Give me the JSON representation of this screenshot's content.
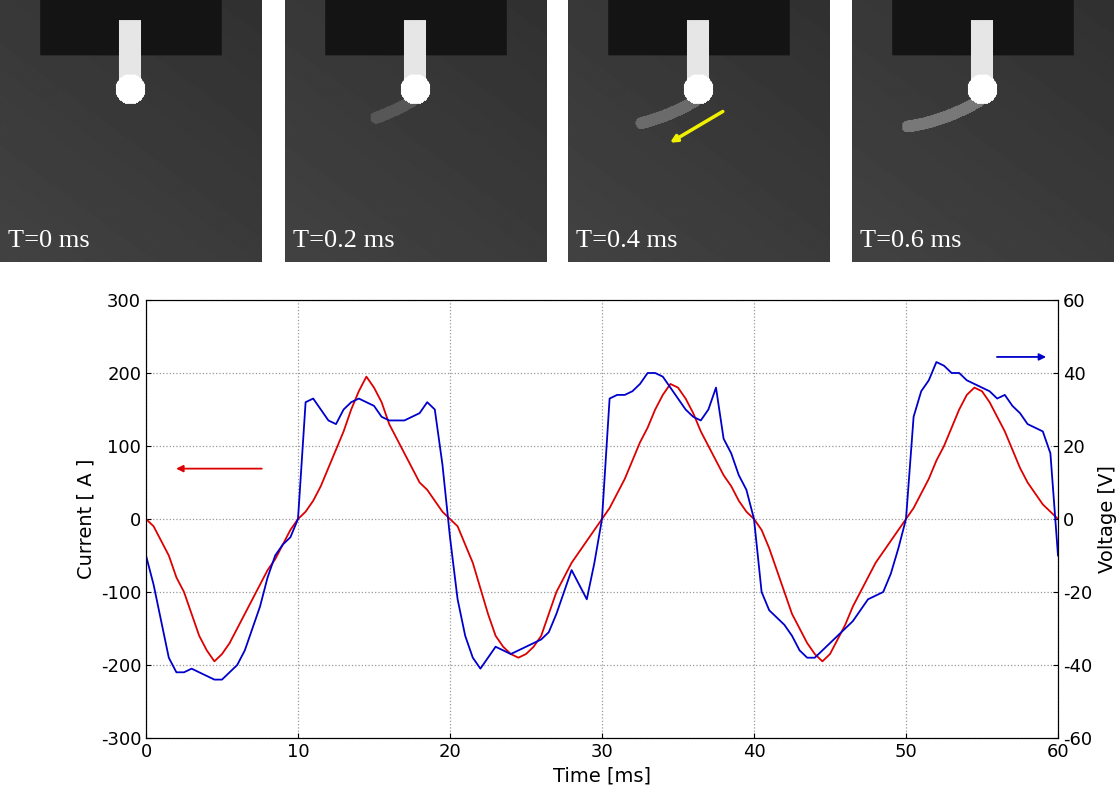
{
  "frames": [
    "T=0 ms",
    "T=0.2 ms",
    "T=0.4 ms",
    "T=0.6 ms"
  ],
  "chart_data": {
    "type": "line",
    "x_label": "Time [ms]",
    "y_label": "Current [ A ]",
    "y2_label": "Voltage [V]",
    "xlim": [
      0,
      60
    ],
    "xticks": [
      0,
      10,
      20,
      30,
      40,
      50,
      60
    ],
    "ylim": [
      -300,
      300
    ],
    "yticks": [
      -300,
      -200,
      -100,
      0,
      100,
      200,
      300
    ],
    "y2lim": [
      -60,
      60
    ],
    "y2ticks": [
      -60,
      -40,
      -20,
      0,
      20,
      40,
      60
    ],
    "grid": true,
    "x": [
      0,
      0.5,
      1,
      1.5,
      2,
      2.5,
      3,
      3.5,
      4,
      4.5,
      5,
      5.5,
      6,
      6.5,
      7,
      7.5,
      8,
      8.5,
      9,
      9.5,
      10,
      10.5,
      11,
      11.5,
      12,
      12.5,
      13,
      13.5,
      14,
      14.5,
      15,
      15.5,
      16,
      16.5,
      17,
      17.5,
      18,
      18.5,
      19,
      19.5,
      20,
      20.5,
      21,
      21.5,
      22,
      22.5,
      23,
      23.5,
      24,
      24.5,
      25,
      25.5,
      26,
      26.5,
      27,
      27.5,
      28,
      28.5,
      29,
      29.5,
      30,
      30.5,
      31,
      31.5,
      32,
      32.5,
      33,
      33.5,
      34,
      34.5,
      35,
      35.5,
      36,
      36.5,
      37,
      37.5,
      38,
      38.5,
      39,
      39.5,
      40,
      40.5,
      41,
      41.5,
      42,
      42.5,
      43,
      43.5,
      44,
      44.5,
      45,
      45.5,
      46,
      46.5,
      47,
      47.5,
      48,
      48.5,
      49,
      49.5,
      50,
      50.5,
      51,
      51.5,
      52,
      52.5,
      53,
      53.5,
      54,
      54.5,
      55,
      55.5,
      56,
      56.5,
      57,
      57.5,
      58,
      58.5,
      59,
      59.5,
      60
    ],
    "series": [
      {
        "color": "#dd0000",
        "axis": "y",
        "values": [
          0,
          -10,
          -30,
          -50,
          -80,
          -100,
          -130,
          -160,
          -180,
          -195,
          -185,
          -170,
          -150,
          -130,
          -110,
          -90,
          -70,
          -55,
          -35,
          -15,
          0,
          10,
          25,
          45,
          70,
          95,
          120,
          150,
          175,
          195,
          180,
          160,
          130,
          110,
          90,
          70,
          50,
          40,
          25,
          10,
          0,
          -10,
          -35,
          -60,
          -95,
          -130,
          -160,
          -175,
          -185,
          -190,
          -185,
          -175,
          -160,
          -130,
          -100,
          -80,
          -60,
          -45,
          -30,
          -15,
          0,
          15,
          35,
          55,
          80,
          105,
          125,
          150,
          170,
          185,
          180,
          165,
          145,
          120,
          100,
          80,
          60,
          45,
          25,
          10,
          0,
          -15,
          -40,
          -70,
          -100,
          -130,
          -150,
          -170,
          -185,
          -195,
          -185,
          -165,
          -145,
          -120,
          -100,
          -80,
          -60,
          -45,
          -30,
          -15,
          0,
          15,
          35,
          55,
          80,
          100,
          125,
          150,
          170,
          180,
          175,
          160,
          140,
          120,
          95,
          70,
          50,
          35,
          20,
          10,
          0
        ]
      },
      {
        "color": "#0000cc",
        "axis": "y2",
        "values": [
          -10,
          -18,
          -28,
          -38,
          -42,
          -42,
          -41,
          -42,
          -43,
          -44,
          -44,
          -42,
          -40,
          -36,
          -30,
          -24,
          -16,
          -10,
          -7,
          -5,
          0,
          32,
          33,
          30,
          27,
          26,
          30,
          32,
          33,
          32,
          31,
          28,
          27,
          27,
          27,
          28,
          29,
          32,
          30,
          15,
          -5,
          -22,
          -32,
          -38,
          -41,
          -38,
          -35,
          -36,
          -37,
          -36,
          -35,
          -34,
          -33,
          -31,
          -26,
          -20,
          -14,
          -18,
          -22,
          -12,
          0,
          33,
          34,
          34,
          35,
          37,
          40,
          40,
          39,
          36,
          33,
          30,
          28,
          27,
          30,
          36,
          22,
          18,
          12,
          8,
          0,
          -20,
          -25,
          -27,
          -29,
          -32,
          -36,
          -38,
          -38,
          -36,
          -34,
          -32,
          -30,
          -28,
          -25,
          -22,
          -21,
          -20,
          -15,
          -8,
          0,
          28,
          35,
          38,
          43,
          42,
          40,
          40,
          38,
          37,
          36,
          35,
          33,
          34,
          31,
          29,
          26,
          25,
          24,
          18,
          -10
        ]
      }
    ]
  }
}
